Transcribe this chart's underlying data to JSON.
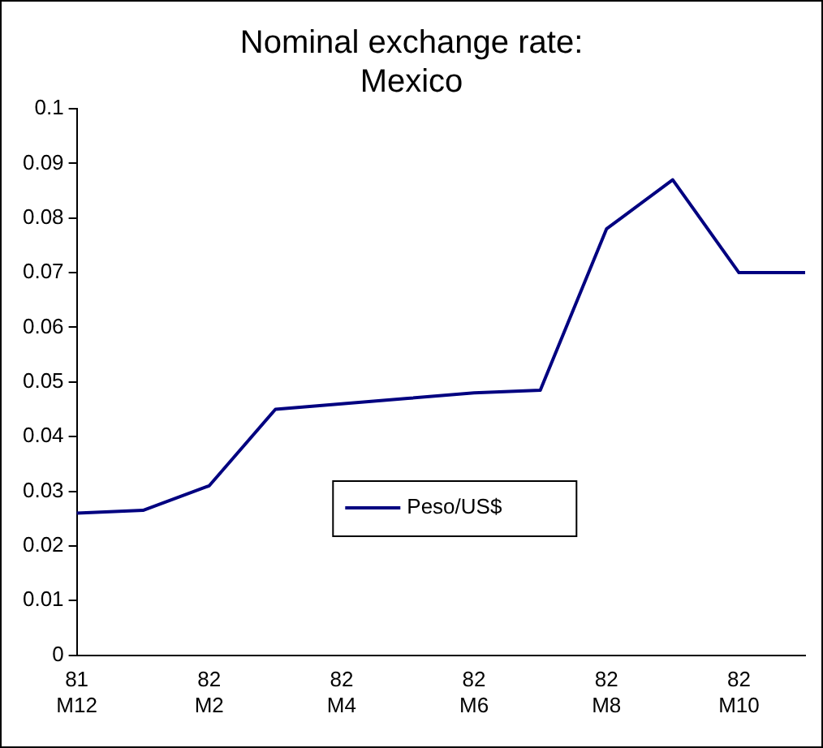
{
  "chart_data": {
    "type": "line",
    "title": "Nominal exchange rate: Mexico",
    "categories": [
      "81 M12",
      null,
      "82 M2",
      null,
      "82 M4",
      null,
      "82 M6",
      null,
      "82 M8",
      null,
      "82 M10",
      null
    ],
    "series": [
      {
        "name": "Peso/US$",
        "color": "#000080",
        "values": [
          0.026,
          0.0265,
          0.031,
          0.045,
          0.046,
          0.047,
          0.048,
          0.0485,
          0.078,
          0.087,
          0.07,
          0.07
        ]
      }
    ],
    "ylim": [
      0,
      0.1
    ],
    "yticks": [
      0,
      0.01,
      0.02,
      0.03,
      0.04,
      0.05,
      0.06,
      0.07,
      0.08,
      0.09,
      0.1
    ],
    "grid": false,
    "legend": "center",
    "marker": "none",
    "line_style": "solid"
  }
}
